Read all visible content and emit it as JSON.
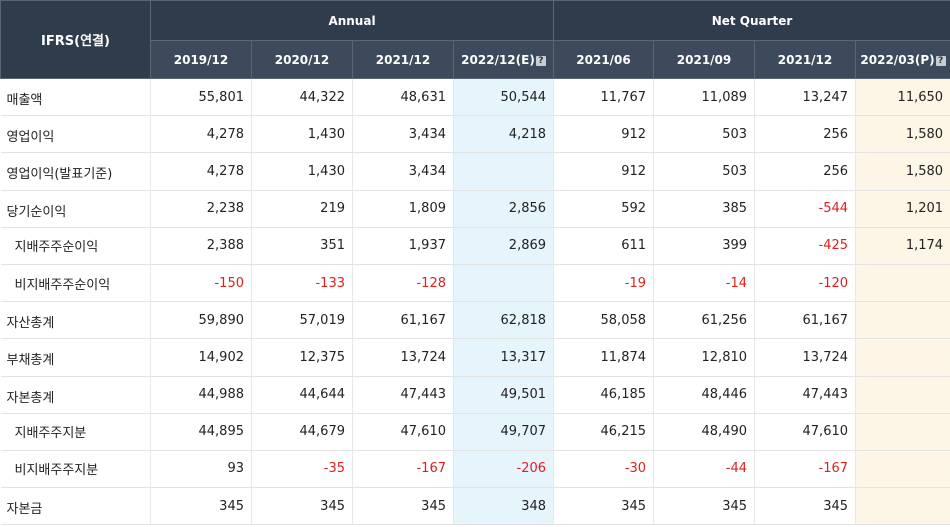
{
  "header": {
    "corner": "IFRS(연결)",
    "annual": "Annual",
    "quarter": "Net Quarter",
    "columns": [
      "2019/12",
      "2020/12",
      "2021/12",
      "2022/12(E)",
      "2021/06",
      "2021/09",
      "2021/12",
      "2022/03(P)"
    ],
    "icon": "?"
  },
  "rows": [
    {
      "label": "매출액",
      "values": [
        "55,801",
        "44,322",
        "48,631",
        "50,544",
        "11,767",
        "11,089",
        "13,247",
        "11,650"
      ]
    },
    {
      "label": "영업이익",
      "values": [
        "4,278",
        "1,430",
        "3,434",
        "4,218",
        "912",
        "503",
        "256",
        "1,580"
      ]
    },
    {
      "label": "영업이익(발표기준)",
      "values": [
        "4,278",
        "1,430",
        "3,434",
        "",
        "912",
        "503",
        "256",
        "1,580"
      ]
    },
    {
      "label": "당기순이익",
      "values": [
        "2,238",
        "219",
        "1,809",
        "2,856",
        "592",
        "385",
        "-544",
        "1,201"
      ]
    },
    {
      "label": "지배주주순이익",
      "values": [
        "2,388",
        "351",
        "1,937",
        "2,869",
        "611",
        "399",
        "-425",
        "1,174"
      ]
    },
    {
      "label": "비지배주주순이익",
      "values": [
        "-150",
        "-133",
        "-128",
        "",
        "-19",
        "-14",
        "-120",
        ""
      ]
    },
    {
      "label": "자산총계",
      "values": [
        "59,890",
        "57,019",
        "61,167",
        "62,818",
        "58,058",
        "61,256",
        "61,167",
        ""
      ]
    },
    {
      "label": "부채총계",
      "values": [
        "14,902",
        "12,375",
        "13,724",
        "13,317",
        "11,874",
        "12,810",
        "13,724",
        ""
      ]
    },
    {
      "label": "자본총계",
      "values": [
        "44,988",
        "44,644",
        "47,443",
        "49,501",
        "46,185",
        "48,446",
        "47,443",
        ""
      ]
    },
    {
      "label": "지배주주지분",
      "values": [
        "44,895",
        "44,679",
        "47,610",
        "49,707",
        "46,215",
        "48,490",
        "47,610",
        ""
      ]
    },
    {
      "label": "비지배주주지분",
      "values": [
        "93",
        "-35",
        "-167",
        "-206",
        "-30",
        "-44",
        "-167",
        ""
      ]
    },
    {
      "label": "자본금",
      "values": [
        "345",
        "345",
        "345",
        "348",
        "345",
        "345",
        "345",
        ""
      ]
    }
  ]
}
